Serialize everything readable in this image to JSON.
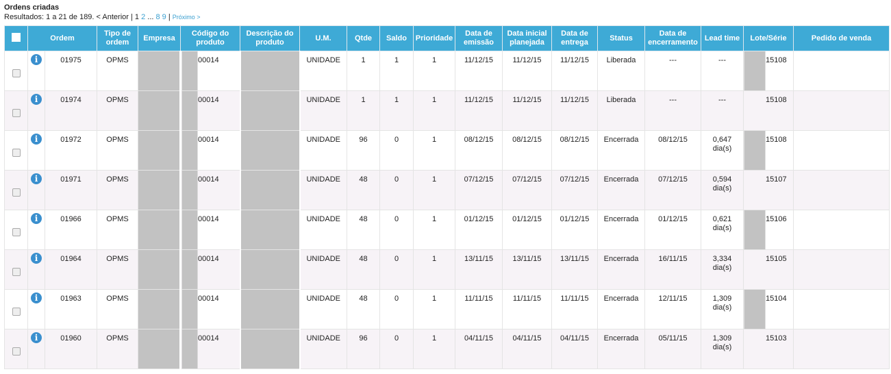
{
  "title": "Ordens criadas",
  "pager": {
    "results": "Resultados: 1 a 21 de 189. < Anterior | 1 ",
    "p2": "2",
    "dots": " ... ",
    "p8": "8",
    "p9": "9",
    "sep": " | ",
    "next": "Próximo >"
  },
  "columns": [
    "Ordem",
    "Tipo de ordem",
    "Empresa",
    "Código do produto",
    "Descrição do produto",
    "U.M.",
    "Qtde",
    "Saldo",
    "Prioridade",
    "Data de emissão",
    "Data inicial planejada",
    "Data de entrega",
    "Status",
    "Data de encerramento",
    "Lead time",
    "Lote/Série",
    "Pedido de venda"
  ],
  "rows": [
    {
      "ordem": "01975",
      "tipo": "OPMS",
      "codigo": "00014",
      "um": "UNIDADE",
      "qtde": "1",
      "saldo": "1",
      "prioridade": "1",
      "emissao": "11/12/15",
      "inicial": "11/12/15",
      "entrega": "11/12/15",
      "status": "Liberada",
      "encerramento": "---",
      "lead": "---",
      "lead2": "",
      "lote": "15108"
    },
    {
      "ordem": "01974",
      "tipo": "OPMS",
      "codigo": "00014",
      "um": "UNIDADE",
      "qtde": "1",
      "saldo": "1",
      "prioridade": "1",
      "emissao": "11/12/15",
      "inicial": "11/12/15",
      "entrega": "11/12/15",
      "status": "Liberada",
      "encerramento": "---",
      "lead": "---",
      "lead2": "",
      "lote": "15108"
    },
    {
      "ordem": "01972",
      "tipo": "OPMS",
      "codigo": "00014",
      "um": "UNIDADE",
      "qtde": "96",
      "saldo": "0",
      "prioridade": "1",
      "emissao": "08/12/15",
      "inicial": "08/12/15",
      "entrega": "08/12/15",
      "status": "Encerrada",
      "encerramento": "08/12/15",
      "lead": "0,647",
      "lead2": "dia(s)",
      "lote": "15108"
    },
    {
      "ordem": "01971",
      "tipo": "OPMS",
      "codigo": "00014",
      "um": "UNIDADE",
      "qtde": "48",
      "saldo": "0",
      "prioridade": "1",
      "emissao": "07/12/15",
      "inicial": "07/12/15",
      "entrega": "07/12/15",
      "status": "Encerrada",
      "encerramento": "07/12/15",
      "lead": "0,594",
      "lead2": "dia(s)",
      "lote": "15107"
    },
    {
      "ordem": "01966",
      "tipo": "OPMS",
      "codigo": "00014",
      "um": "UNIDADE",
      "qtde": "48",
      "saldo": "0",
      "prioridade": "1",
      "emissao": "01/12/15",
      "inicial": "01/12/15",
      "entrega": "01/12/15",
      "status": "Encerrada",
      "encerramento": "01/12/15",
      "lead": "0,621",
      "lead2": "dia(s)",
      "lote": "15106"
    },
    {
      "ordem": "01964",
      "tipo": "OPMS",
      "codigo": "00014",
      "um": "UNIDADE",
      "qtde": "48",
      "saldo": "0",
      "prioridade": "1",
      "emissao": "13/11/15",
      "inicial": "13/11/15",
      "entrega": "13/11/15",
      "status": "Encerrada",
      "encerramento": "16/11/15",
      "lead": "3,334",
      "lead2": "dia(s)",
      "lote": "15105"
    },
    {
      "ordem": "01963",
      "tipo": "OPMS",
      "codigo": "00014",
      "um": "UNIDADE",
      "qtde": "48",
      "saldo": "0",
      "prioridade": "1",
      "emissao": "11/11/15",
      "inicial": "11/11/15",
      "entrega": "11/11/15",
      "status": "Encerrada",
      "encerramento": "12/11/15",
      "lead": "1,309",
      "lead2": "dia(s)",
      "lote": "15104"
    },
    {
      "ordem": "01960",
      "tipo": "OPMS",
      "codigo": "00014",
      "um": "UNIDADE",
      "qtde": "96",
      "saldo": "0",
      "prioridade": "1",
      "emissao": "04/11/15",
      "inicial": "04/11/15",
      "entrega": "04/11/15",
      "status": "Encerrada",
      "encerramento": "05/11/15",
      "lead": "1,309",
      "lead2": "dia(s)",
      "lote": "15103"
    }
  ],
  "colors": {
    "header": "#3eaad6",
    "alt_row": "#f7f3f7",
    "info_icon": "#3a8fce",
    "link": "#3a9fd0"
  }
}
